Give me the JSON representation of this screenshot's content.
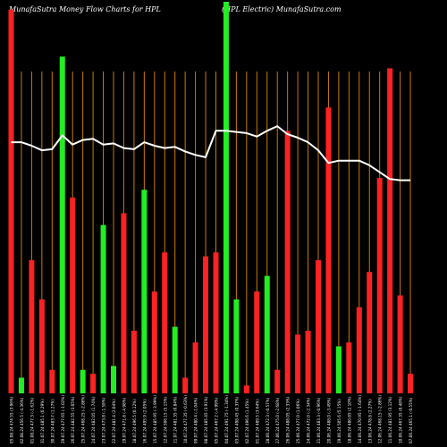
{
  "header": {
    "left": "MunafaSutra  Money Flow  Charts for HPL",
    "right": "(HPL  Electric) MunafaSutra.com"
  },
  "colors": {
    "background": "#000000",
    "grid": "#cc7a00",
    "up": "#22ee22",
    "down": "#ff2222",
    "line": "#ffffff",
    "text": "#ffffff"
  },
  "chart_data": {
    "type": "bar",
    "title": "MunafaSutra  Money Flow  Charts for HPL",
    "subtitle": "(HPL  Electric) MunafaSutra.com",
    "categories": [
      "05.08.24 474.55 (3.96%)",
      "02.08.24 456.5 (-4.36%)",
      "01.08.24 477.3 (-1.62%)",
      "31.07.24 485.1 (0.29%)",
      "30.07.24 483.7 (1.27%)",
      "29.07.24 477.65 (-1.02%)",
      "26.07.24 482.55 (3.05%)",
      "25.07.24 468.25 (-2.86%)",
      "24.07.24 482.05 (1.74%)",
      "23.07.24 473.8 (-1.58%)",
      "22.07.24 481.4 (2.04%)",
      "19.07.24 471.8 (-4.98%)",
      "18.07.24 496.5 (0.12%)",
      "16.07.24 495.9 (2.05%)",
      "15.07.24 485.95 (-3.99%)",
      "12.07.24 506.15 (5.15%)",
      "11.07.24 481.35 (0.84%)",
      "10.07.24 477.35 (-0.63%)",
      "09.07.24 480.4 (-1.04%)",
      "08.07.24 485.45 (3.91%)",
      "05.07.24 467.2 (-4.99%)",
      "04.07.24 491.75 (-1.34%)",
      "03.07.24 498.45 (0.37%)",
      "02.07.24 496.6 (1.45%)",
      "01.07.24 489.5 (3.64%)",
      "28.06.24 472.3 (-0.57%)",
      "27.06.24 475.0 (-2.68%)",
      "26.06.24 488.05 (2.33%)",
      "25.06.24 477.0 (1.06%)",
      "24.06.24 472.0 (-2.34%)",
      "21.06.24 483.3 (-0.96%)",
      "20.06.24 488.0 (-3.49%)",
      "19.06.24 505.6 (5.15%)",
      "18.06.24 480.85 (2.10%)",
      "14.06.24 470.95 (-1.64%)",
      "13.06.24 478.8 (2.27%)",
      "12.06.24 468.15 (-2.86%)",
      "11.06.24 481.95 (3.12%)",
      "10.06.24 467.35 (0.48%)",
      "07.06.24 465.1 (-0.55%)"
    ],
    "values": [
      98,
      4,
      34,
      24,
      6,
      86,
      50,
      6,
      5,
      43,
      7,
      46,
      16,
      52,
      26,
      36,
      17,
      4,
      13,
      35,
      36,
      100,
      24,
      2,
      26,
      30,
      6,
      67,
      15,
      16,
      34,
      73,
      12,
      13,
      22,
      31,
      55,
      83,
      25,
      5
    ],
    "colors": [
      "down",
      "up",
      "down",
      "down",
      "down",
      "up",
      "down",
      "up",
      "down",
      "up",
      "up",
      "down",
      "down",
      "up",
      "down",
      "down",
      "up",
      "down",
      "down",
      "down",
      "down",
      "up",
      "up",
      "down",
      "down",
      "up",
      "down",
      "down",
      "down",
      "down",
      "down",
      "down",
      "up",
      "down",
      "down",
      "down",
      "down",
      "down",
      "down",
      "down"
    ],
    "series": [
      {
        "name": "Price",
        "values": [
          474,
          474,
          471,
          467,
          468,
          480,
          472,
          476,
          477,
          472,
          473,
          469,
          468,
          474,
          471,
          469,
          470,
          466,
          463,
          461,
          484,
          484,
          483,
          482,
          479,
          484,
          488,
          481,
          478,
          474,
          467,
          456,
          458,
          458,
          458,
          454,
          448,
          442,
          441,
          441
        ]
      }
    ],
    "volume_ylim": [
      0,
      100
    ],
    "price_ylim": [
      380,
      520
    ],
    "grid": true
  }
}
